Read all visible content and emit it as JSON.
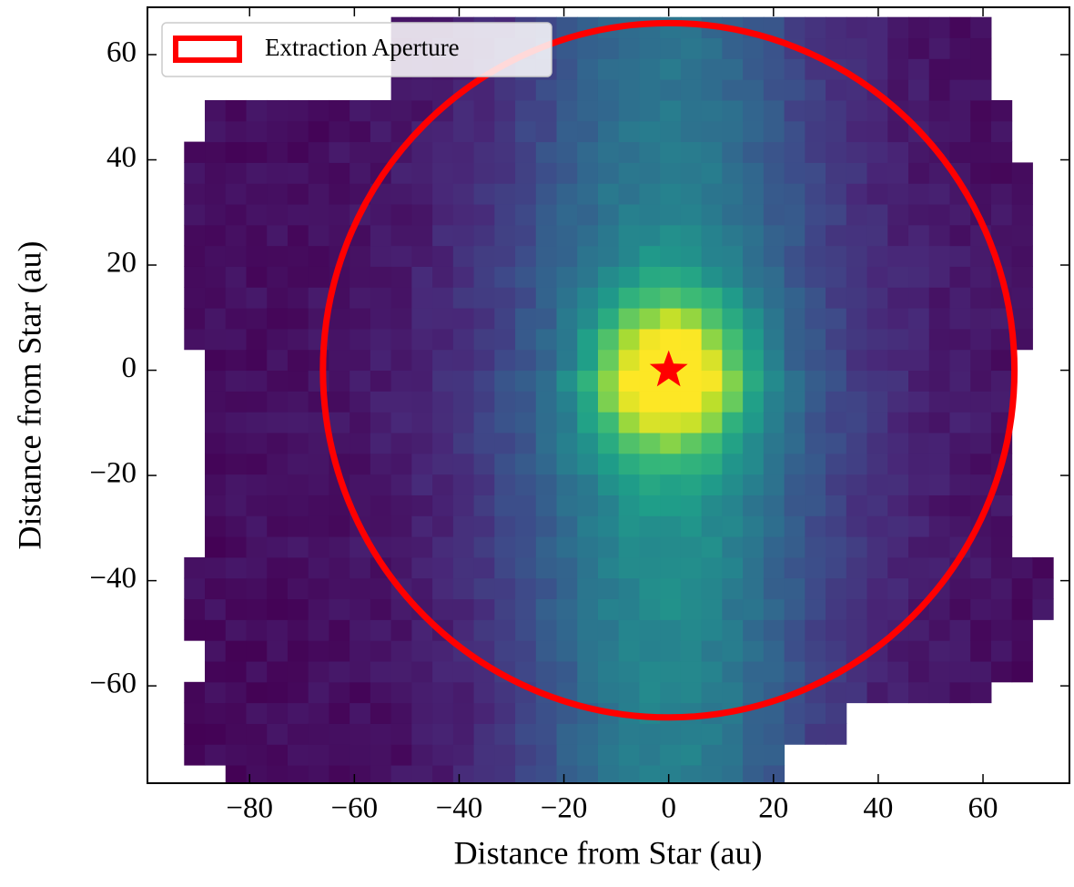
{
  "chart_data": {
    "type": "heatmap",
    "xlabel": "Distance from Star (au)",
    "ylabel": "Distance from Star (au)",
    "xlim": [
      -99.5,
      76.5
    ],
    "ylim": [
      -78.5,
      69
    ],
    "xticks": [
      {
        "value": -80,
        "label": "−80"
      },
      {
        "value": -60,
        "label": "−60"
      },
      {
        "value": -40,
        "label": "−40"
      },
      {
        "value": -20,
        "label": "−20"
      },
      0,
      20,
      40,
      60
    ],
    "yticks": [
      {
        "value": -60,
        "label": "−60"
      },
      {
        "value": -40,
        "label": "−40"
      },
      {
        "value": -20,
        "label": "−20"
      },
      0,
      20,
      40,
      60
    ],
    "aperture": {
      "name": "Extraction Aperture",
      "color": "#ff0000",
      "x": 0,
      "y": 0,
      "radius": 66
    },
    "star": {
      "x": 0,
      "y": 0,
      "color": "#ff0000"
    },
    "legend": "upper left"
  }
}
